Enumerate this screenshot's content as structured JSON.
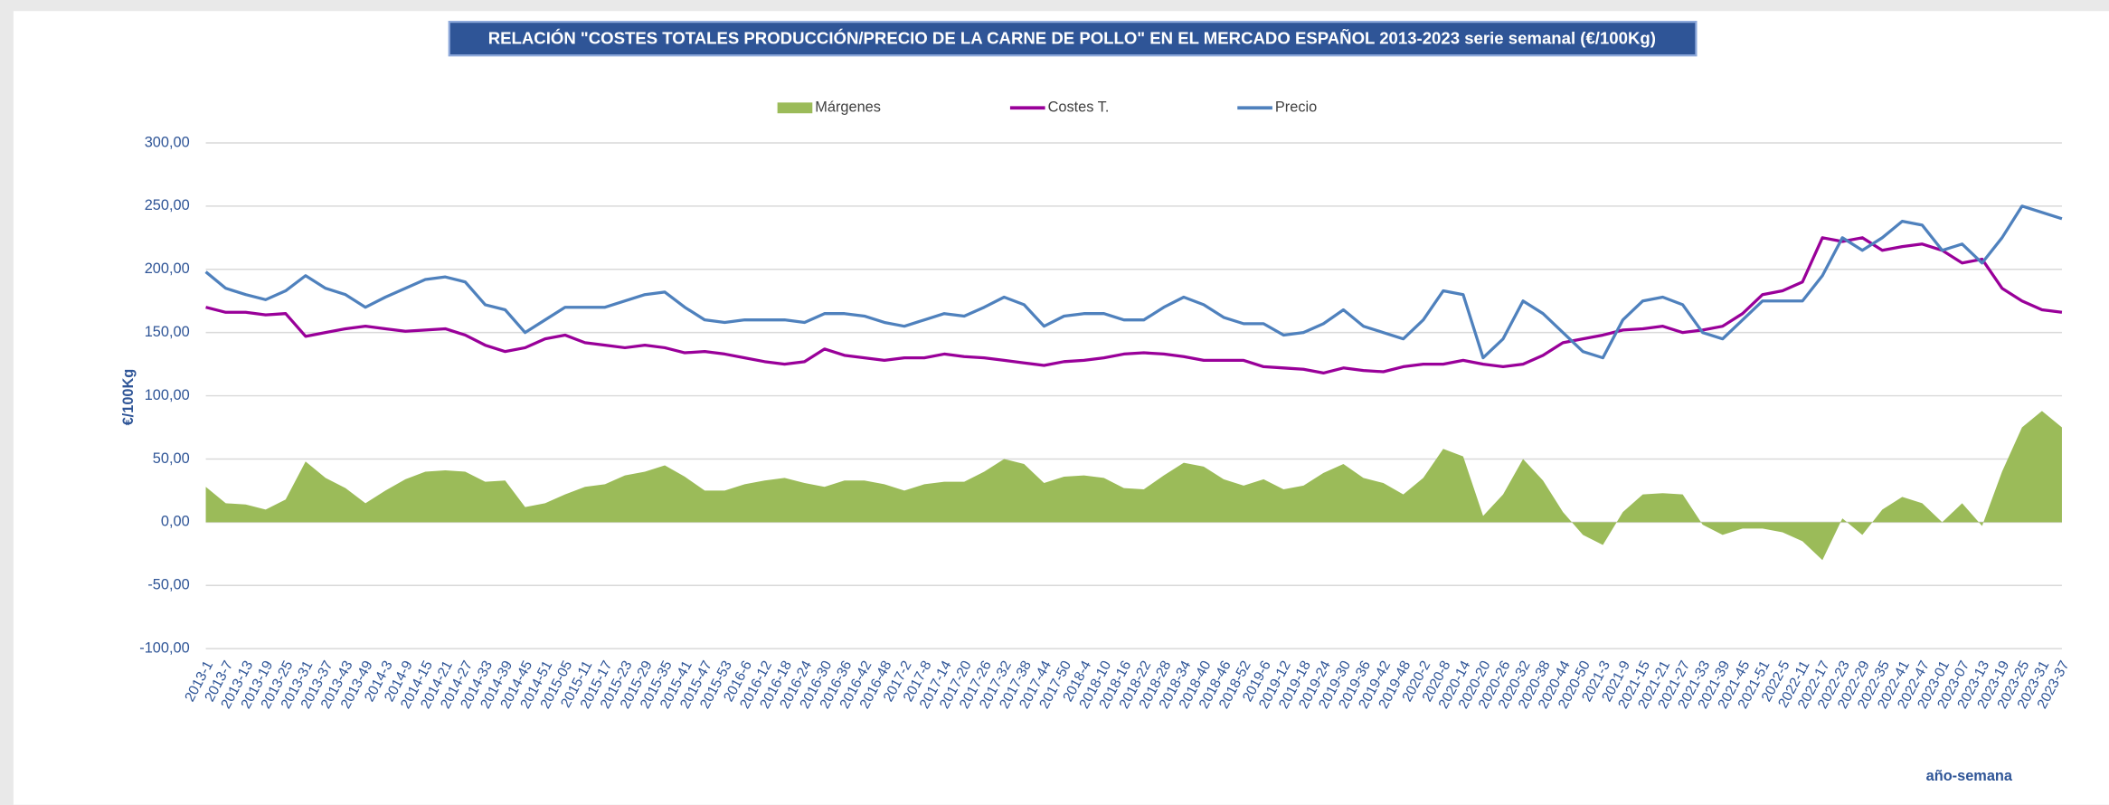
{
  "chart_data": {
    "type": "combo",
    "title": "RELACIÓN \"COSTES TOTALES PRODUCCIÓN/PRECIO DE LA CARNE DE POLLO\" EN EL MERCADO ESPAÑOL 2013-2023 serie semanal (€/100Kg)",
    "y_label": "€/100Kg",
    "x_label": "año-semana",
    "categories": [
      "2013-1",
      "2013-7",
      "2013-13",
      "2013-19",
      "2013-25",
      "2013-31",
      "2013-37",
      "2013-43",
      "2013-49",
      "2014-3",
      "2014-9",
      "2014-15",
      "2014-21",
      "2014-27",
      "2014-33",
      "2014-39",
      "2014-45",
      "2014-51",
      "2015-05",
      "2015-11",
      "2015-17",
      "2015-23",
      "2015-29",
      "2015-35",
      "2015-41",
      "2015-47",
      "2015-53",
      "2016-6",
      "2016-12",
      "2016-18",
      "2016-24",
      "2016-30",
      "2016-36",
      "2016-42",
      "2016-48",
      "2017-2",
      "2017-8",
      "2017-14",
      "2017-20",
      "2017-26",
      "2017-32",
      "2017-38",
      "2017-44",
      "2017-50",
      "2018-4",
      "2018-10",
      "2018-16",
      "2018-22",
      "2018-28",
      "2018-34",
      "2018-40",
      "2018-46",
      "2018-52",
      "2019-6",
      "2019-12",
      "2019-18",
      "2019-24",
      "2019-30",
      "2019-36",
      "2019-42",
      "2019-48",
      "2020-2",
      "2020-8",
      "2020-14",
      "2020-20",
      "2020-26",
      "2020-32",
      "2020-38",
      "2020-44",
      "2020-50",
      "2021-3",
      "2021-9",
      "2021-15",
      "2021-21",
      "2021-27",
      "2021-33",
      "2021-39",
      "2021-45",
      "2021-51",
      "2022-5",
      "2022-11",
      "2022-17",
      "2022-23",
      "2022-29",
      "2022-35",
      "2022-41",
      "2022-47",
      "2023-01",
      "2023-07",
      "2023-13",
      "2023-19",
      "2023-25",
      "2023-31",
      "2023-37"
    ],
    "series": [
      {
        "name": "Márgenes",
        "kind": "area",
        "color": "#9bbb59",
        "values": [
          28,
          15,
          14,
          10,
          18,
          48,
          35,
          27,
          15,
          25,
          34,
          40,
          41,
          40,
          32,
          33,
          12,
          15,
          22,
          28,
          30,
          37,
          40,
          45,
          36,
          25,
          25,
          30,
          33,
          35,
          31,
          28,
          33,
          33,
          30,
          25,
          30,
          32,
          32,
          40,
          50,
          46,
          31,
          36,
          37,
          35,
          27,
          26,
          37,
          47,
          44,
          34,
          29,
          34,
          26,
          29,
          39,
          46,
          35,
          31,
          22,
          35,
          58,
          52,
          5,
          22,
          50,
          33,
          8,
          -10,
          -18,
          8,
          22,
          23,
          22,
          -2,
          -10,
          -5,
          -5,
          -8,
          -15,
          -30,
          3,
          -10,
          10,
          20,
          15,
          0,
          15,
          -3,
          40,
          75,
          88,
          75
        ]
      },
      {
        "name": "Costes T.",
        "kind": "line",
        "color": "#990099",
        "values": [
          170,
          166,
          166,
          164,
          165,
          147,
          150,
          153,
          155,
          153,
          151,
          152,
          153,
          148,
          140,
          135,
          138,
          145,
          148,
          142,
          140,
          138,
          140,
          138,
          134,
          135,
          133,
          130,
          127,
          125,
          127,
          137,
          132,
          130,
          128,
          130,
          130,
          133,
          131,
          130,
          128,
          126,
          124,
          127,
          128,
          130,
          133,
          134,
          133,
          131,
          128,
          128,
          128,
          123,
          122,
          121,
          118,
          122,
          120,
          119,
          123,
          125,
          125,
          128,
          125,
          123,
          125,
          132,
          142,
          145,
          148,
          152,
          153,
          155,
          150,
          152,
          155,
          165,
          180,
          183,
          190,
          225,
          222,
          225,
          215,
          218,
          220,
          215,
          205,
          208,
          185,
          175,
          168,
          166
        ]
      },
      {
        "name": "Precio",
        "kind": "line",
        "color": "#4f81bd",
        "values": [
          198,
          185,
          180,
          176,
          183,
          195,
          185,
          180,
          170,
          178,
          185,
          192,
          194,
          190,
          172,
          168,
          150,
          160,
          170,
          170,
          170,
          175,
          180,
          182,
          170,
          160,
          158,
          160,
          160,
          160,
          158,
          165,
          165,
          163,
          158,
          155,
          160,
          165,
          163,
          170,
          178,
          172,
          155,
          163,
          165,
          165,
          160,
          160,
          170,
          178,
          172,
          162,
          157,
          157,
          148,
          150,
          157,
          168,
          155,
          150,
          145,
          160,
          183,
          180,
          130,
          145,
          175,
          165,
          150,
          135,
          130,
          160,
          175,
          178,
          172,
          150,
          145,
          160,
          175,
          175,
          175,
          195,
          225,
          215,
          225,
          238,
          235,
          215,
          220,
          205,
          225,
          250,
          245,
          240
        ]
      }
    ],
    "ylim": [
      -100,
      300
    ],
    "yticks": [
      {
        "value": -100,
        "label": "-100,00"
      },
      {
        "value": -50,
        "label": "-50,00"
      },
      {
        "value": 0,
        "label": "0,00"
      },
      {
        "value": 50,
        "label": "50,00"
      },
      {
        "value": 100,
        "label": "100,00"
      },
      {
        "value": 150,
        "label": "150,00"
      },
      {
        "value": 200,
        "label": "200,00"
      },
      {
        "value": 250,
        "label": "250,00"
      },
      {
        "value": 300,
        "label": "300,00"
      }
    ],
    "grid": true,
    "legend": "top"
  }
}
